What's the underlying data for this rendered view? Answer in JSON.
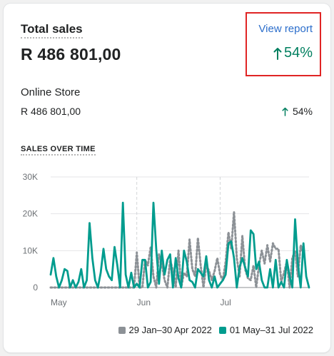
{
  "card": {
    "title": "Total sales",
    "total_value": "R 486 801,00",
    "view_report_label": "View report",
    "change_percent": "54%",
    "store": {
      "name": "Online Store",
      "value": "R 486 801,00",
      "change_percent": "54%"
    },
    "sales_over_time_title": "SALES OVER TIME"
  },
  "colors": {
    "current_series": "#009c8e",
    "previous_series": "#8c9196",
    "positive": "#007f5f",
    "link": "#2c6ecb",
    "highlight_box": "#e02424"
  },
  "chart_data": {
    "type": "line",
    "ylim": [
      0,
      30000
    ],
    "y_ticks": [
      "0",
      "10K",
      "20K",
      "30K"
    ],
    "x_ticks": [
      "May",
      "Jun",
      "Jul"
    ],
    "x_tick_days": [
      0,
      31,
      61
    ],
    "grid": true,
    "legend_position": "bottom-right",
    "series": [
      {
        "name": "29 Jan–30 Apr 2022",
        "style": "dotted",
        "color": "#8c9196",
        "values": [
          0,
          0,
          0,
          0,
          0,
          0,
          0,
          0,
          0,
          0,
          0,
          0,
          0,
          0,
          0,
          0,
          0,
          0,
          0,
          0,
          0,
          0,
          0,
          0,
          0,
          0,
          0,
          0,
          0,
          0,
          0,
          9500,
          0,
          0,
          7500,
          6000,
          11000,
          3000,
          0,
          9000,
          6500,
          2000,
          0,
          7500,
          4500,
          0,
          10000,
          0,
          4000,
          3000,
          13000,
          5000,
          3000,
          13500,
          6000,
          0,
          6000,
          4500,
          2000,
          4500,
          8000,
          3500,
          2000,
          7000,
          15000,
          10500,
          20500,
          8000,
          3000,
          14000,
          5000,
          2500,
          2000,
          6000,
          0,
          6000,
          10000,
          6500,
          11500,
          7000,
          12000,
          10500,
          10500,
          1500,
          4000,
          7000,
          0,
          8000,
          10000,
          3000,
          11500,
          9000
        ]
      },
      {
        "name": "01 May–31 Jul 2022",
        "style": "solid",
        "color": "#009c8e",
        "values": [
          3500,
          8000,
          3000,
          0,
          2000,
          5000,
          4500,
          0,
          2000,
          0,
          1500,
          5000,
          0,
          2000,
          17500,
          8000,
          2000,
          0,
          4000,
          10500,
          5000,
          3000,
          2000,
          11000,
          6000,
          0,
          23000,
          3500,
          0,
          4000,
          0,
          1000,
          0,
          7500,
          7500,
          0,
          1500,
          23000,
          10500,
          1000,
          10000,
          3500,
          7500,
          9000,
          0,
          8000,
          2500,
          0,
          10000,
          7000,
          2000,
          1500,
          0,
          5000,
          4000,
          3000,
          8500,
          2000,
          0,
          3000,
          0,
          1000,
          2000,
          3500,
          12000,
          12500,
          8000,
          0,
          5500,
          8000,
          5500,
          3000,
          15500,
          14500,
          5000,
          7000,
          2000,
          0,
          0,
          5000,
          0,
          7500,
          0,
          1500,
          0,
          7500,
          3000,
          0,
          18500,
          6500,
          0,
          12000,
          3000,
          0
        ]
      }
    ]
  }
}
